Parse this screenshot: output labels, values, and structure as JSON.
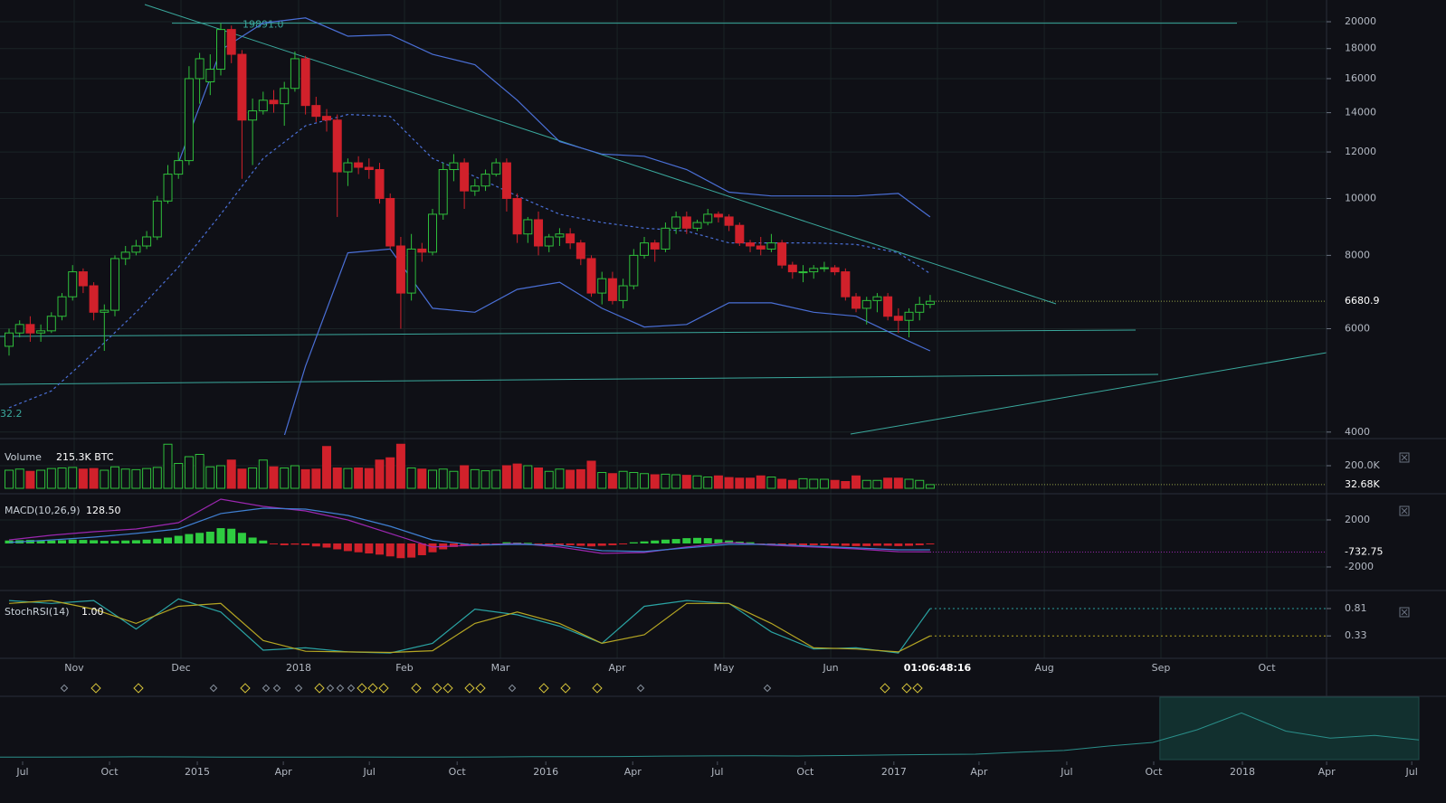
{
  "chart_data": [
    {
      "type": "candlestick",
      "log_scale": true,
      "grid": true,
      "xlim": [
        -0.855,
        124.44
      ],
      "ylim": [
        3955,
        21780
      ],
      "yticks": [
        4000,
        6000,
        8000,
        10000,
        12000,
        14000,
        16000,
        18000,
        20000
      ],
      "xticks": [
        {
          "value": 6.15,
          "label": "Nov"
        },
        {
          "value": 16.24,
          "label": "Dec"
        },
        {
          "value": 27.35,
          "label": "2018"
        },
        {
          "value": 37.35,
          "label": "Feb"
        },
        {
          "value": 46.41,
          "label": "Mar"
        },
        {
          "value": 57.44,
          "label": "Apr"
        },
        {
          "value": 67.52,
          "label": "May"
        },
        {
          "value": 77.61,
          "label": "Jun"
        },
        {
          "value": 87.69,
          "label": "01:06:48:16"
        },
        {
          "value": 97.78,
          "label": "Aug"
        },
        {
          "value": 108.8,
          "label": "Sep"
        },
        {
          "value": 118.8,
          "label": "Oct"
        }
      ],
      "up_color": "#2fbf3b",
      "down_color": "#d1212b",
      "candles": {
        "open": [
          5600,
          5900,
          6100,
          5900,
          5950,
          6300,
          6800,
          7500,
          7100,
          6400,
          6450,
          7900,
          8100,
          8300,
          8600,
          9900,
          11000,
          11600,
          16000,
          15800,
          16600,
          19400,
          17600,
          13600,
          14100,
          14700,
          14500,
          15400,
          17300,
          14400,
          13800,
          13600,
          11100,
          11500,
          11300,
          11200,
          10000,
          8300,
          6900,
          8200,
          8100,
          9400,
          11200,
          11500,
          10300,
          10500,
          11000,
          11500,
          10000,
          8700,
          9200,
          8300,
          8600,
          8700,
          8400,
          7900,
          6900,
          7300,
          6700,
          7100,
          8000,
          8400,
          8200,
          8900,
          9300,
          8900,
          9100,
          9400,
          9300,
          9000,
          8400,
          8300,
          8200,
          8400,
          7700,
          7500,
          7500,
          7600,
          7620,
          7500,
          6800,
          6500,
          6700,
          6800,
          6300,
          6200,
          6400,
          6600
        ],
        "high": [
          6000,
          6200,
          6300,
          6100,
          6400,
          6900,
          7700,
          7600,
          7200,
          6600,
          8000,
          8300,
          8500,
          8800,
          10100,
          11400,
          12000,
          16800,
          17700,
          17600,
          19891,
          19700,
          17900,
          14800,
          15200,
          15300,
          15800,
          17800,
          17500,
          14900,
          14200,
          13900,
          11700,
          11800,
          11700,
          11500,
          10200,
          8600,
          8700,
          8400,
          9600,
          11500,
          11900,
          11700,
          10800,
          11200,
          11700,
          11700,
          10200,
          9300,
          9500,
          8700,
          8900,
          8900,
          8500,
          8000,
          7500,
          7500,
          7300,
          8200,
          8600,
          8500,
          9100,
          9500,
          9500,
          9200,
          9600,
          9500,
          9400,
          9100,
          8500,
          8600,
          8700,
          8500,
          7800,
          7700,
          7700,
          7800,
          7700,
          7600,
          6900,
          6800,
          6900,
          6900,
          6500,
          6500,
          6800,
          6850
        ],
        "low": [
          5400,
          5800,
          5700,
          5700,
          5900,
          6200,
          6700,
          6900,
          6200,
          5500,
          6300,
          7700,
          8000,
          8200,
          8500,
          9800,
          10800,
          11400,
          14500,
          15000,
          16200,
          17000,
          10800,
          11400,
          13900,
          14000,
          13300,
          15200,
          13900,
          13500,
          13000,
          9300,
          10500,
          11000,
          10800,
          9800,
          8200,
          6000,
          6700,
          7800,
          8000,
          9200,
          10700,
          9600,
          10100,
          10300,
          10900,
          9500,
          8400,
          8400,
          8000,
          8100,
          8300,
          8200,
          7700,
          6800,
          6600,
          6600,
          6500,
          7000,
          7900,
          7800,
          8100,
          8700,
          8700,
          8800,
          9000,
          9100,
          8800,
          8300,
          8100,
          8000,
          8100,
          7600,
          7300,
          7200,
          7300,
          7500,
          7400,
          6700,
          6400,
          6100,
          6400,
          6200,
          5900,
          5800,
          6200,
          6500
        ],
        "close": [
          5900,
          6100,
          5900,
          5950,
          6300,
          6800,
          7500,
          7100,
          6400,
          6450,
          7900,
          8100,
          8300,
          8600,
          9900,
          11000,
          11600,
          16000,
          17300,
          16600,
          19400,
          17600,
          13600,
          14100,
          14700,
          14500,
          15400,
          17300,
          14400,
          13800,
          13600,
          11100,
          11500,
          11300,
          11200,
          10000,
          8300,
          6900,
          8200,
          8100,
          9400,
          11200,
          11500,
          10300,
          10500,
          11000,
          11500,
          10000,
          8700,
          9200,
          8300,
          8600,
          8700,
          8400,
          7900,
          6900,
          7300,
          6700,
          7100,
          8000,
          8400,
          8200,
          8900,
          9300,
          8900,
          9100,
          9400,
          9300,
          9000,
          8400,
          8300,
          8200,
          8400,
          7700,
          7500,
          7500,
          7600,
          7620,
          7500,
          6800,
          6500,
          6700,
          6800,
          6300,
          6200,
          6400,
          6600,
          6680.9
        ]
      },
      "overlays": [
        {
          "color": "#4a6fd6",
          "x": [
            0,
            4,
            8,
            12,
            16,
            20,
            24,
            28,
            32,
            36,
            40,
            44,
            48,
            52,
            56,
            60,
            64,
            68,
            72,
            76,
            80,
            84,
            87
          ],
          "values": [
            null,
            null,
            null,
            null,
            11500,
            17900,
            19900,
            20300,
            18900,
            19000,
            17600,
            16900,
            14700,
            12500,
            11900,
            11800,
            11200,
            10250,
            10100,
            10100,
            10100,
            10200,
            9300
          ]
        },
        {
          "color": "#4a6fd6",
          "style": "dashed",
          "x": [
            0,
            4,
            8,
            12,
            16,
            20,
            24,
            28,
            32,
            36,
            40,
            44,
            48,
            52,
            56,
            60,
            64,
            68,
            72,
            76,
            80,
            84,
            87
          ],
          "values": [
            4400,
            4700,
            5460,
            6400,
            7640,
            9400,
            11700,
            13300,
            13900,
            13800,
            11700,
            10900,
            10100,
            9400,
            9100,
            8900,
            8800,
            8400,
            8400,
            8400,
            8350,
            8080,
            7450
          ]
        },
        {
          "color": "#4a6fd6",
          "x": [
            0,
            4,
            8,
            12,
            16,
            20,
            24,
            28,
            32,
            36,
            40,
            44,
            48,
            52,
            56,
            60,
            64,
            68,
            72,
            76,
            80,
            84,
            87
          ],
          "values": [
            null,
            null,
            null,
            null,
            null,
            null,
            3000,
            5180,
            8080,
            8200,
            6500,
            6400,
            7000,
            7200,
            6500,
            6040,
            6100,
            6640,
            6640,
            6400,
            6300,
            5820,
            5500
          ]
        }
      ],
      "annotation": {
        "value": 19891,
        "label": "19891.0"
      },
      "corner_label": "32.2",
      "last_price": 6680.9
    },
    {
      "type": "bar",
      "title": "Volume",
      "value_text": "215.3K BTC",
      "ylim": [
        0,
        400
      ],
      "yticks": [
        {
          "value": 200,
          "label": "200.0K"
        }
      ],
      "last": {
        "value": 32.68,
        "label": "32.68K"
      },
      "values": [
        160,
        170,
        150,
        160,
        175,
        180,
        185,
        170,
        175,
        160,
        190,
        170,
        165,
        175,
        185,
        390,
        220,
        280,
        300,
        190,
        200,
        250,
        170,
        180,
        250,
        190,
        180,
        200,
        165,
        170,
        370,
        180,
        175,
        180,
        175,
        250,
        270,
        390,
        180,
        170,
        160,
        170,
        150,
        200,
        165,
        155,
        160,
        200,
        215,
        200,
        180,
        150,
        170,
        160,
        165,
        240,
        140,
        130,
        150,
        140,
        130,
        120,
        125,
        120,
        115,
        110,
        100,
        110,
        95,
        90,
        90,
        110,
        100,
        80,
        70,
        85,
        80,
        80,
        70,
        60,
        110,
        70,
        70,
        90,
        90,
        80,
        70,
        32.68
      ]
    },
    {
      "type": "macd",
      "title": "MACD(10,26,9)",
      "value_text": "128.50",
      "ylim": [
        -3770,
        3920
      ],
      "yticks": [
        2000,
        -2000
      ],
      "last": -732.75,
      "up_color": "#2ecc40",
      "down_color": "#d1212b",
      "histogram": [
        250,
        275,
        300,
        275,
        250,
        275,
        325,
        300,
        275,
        225,
        225,
        250,
        275,
        325,
        400,
        500,
        650,
        800,
        900,
        1000,
        1300,
        1250,
        900,
        500,
        250,
        -75,
        -150,
        -100,
        -150,
        -250,
        -350,
        -500,
        -650,
        -750,
        -850,
        -950,
        -1100,
        -1250,
        -1200,
        -1000,
        -750,
        -500,
        -300,
        -200,
        -150,
        -100,
        -75,
        100,
        75,
        50,
        -50,
        -100,
        -125,
        -150,
        -200,
        -250,
        -200,
        -150,
        -75,
        100,
        175,
        250,
        325,
        375,
        450,
        475,
        450,
        350,
        250,
        150,
        100,
        -50,
        -100,
        -150,
        -175,
        -175,
        -150,
        -150,
        -175,
        -200,
        -225,
        -225,
        -200,
        -200,
        -225,
        -200,
        -150,
        -50
      ],
      "series": [
        {
          "color": "#9c27b0",
          "x": [
            0,
            4,
            8,
            12,
            16,
            20,
            24,
            28,
            32,
            36,
            40,
            44,
            48,
            52,
            56,
            60,
            64,
            68,
            72,
            76,
            80,
            84,
            87
          ],
          "values": [
            300,
            700,
            1000,
            1230,
            1770,
            3770,
            3150,
            2770,
            2000,
            850,
            -300,
            -150,
            0,
            -300,
            -850,
            -770,
            -300,
            80,
            -150,
            -300,
            -460,
            -700,
            -720
          ]
        },
        {
          "color": "#3f7fd1",
          "x": [
            0,
            4,
            8,
            12,
            16,
            20,
            24,
            28,
            32,
            36,
            40,
            44,
            48,
            52,
            56,
            60,
            64,
            68,
            72,
            76,
            80,
            84,
            87
          ],
          "values": [
            80,
            300,
            540,
            850,
            1230,
            2540,
            3000,
            2920,
            2380,
            1460,
            300,
            -150,
            -80,
            -150,
            -620,
            -690,
            -380,
            -80,
            -80,
            -230,
            -380,
            -540,
            -540
          ]
        }
      ]
    },
    {
      "type": "line",
      "title": "StochRSI(14)",
      "value_text": "1.00",
      "ylim": [
        0,
        1
      ],
      "yticks": [
        0.81,
        0.33
      ],
      "series": [
        {
          "color": "#2aa3a3",
          "x": [
            0,
            4,
            8,
            12,
            16,
            20,
            24,
            28,
            32,
            36,
            40,
            44,
            48,
            52,
            56,
            60,
            64,
            68,
            72,
            76,
            80,
            84,
            87
          ],
          "values": [
            0.95,
            0.9,
            0.95,
            0.45,
            0.98,
            0.75,
            0.08,
            0.12,
            0.05,
            0.03,
            0.2,
            0.8,
            0.7,
            0.5,
            0.2,
            0.85,
            0.95,
            0.9,
            0.4,
            0.1,
            0.12,
            0.03,
            0.81
          ]
        },
        {
          "color": "#b5a623",
          "x": [
            0,
            4,
            8,
            12,
            16,
            20,
            24,
            28,
            32,
            36,
            40,
            44,
            48,
            52,
            56,
            60,
            64,
            68,
            72,
            76,
            80,
            84,
            87
          ],
          "values": [
            0.9,
            0.95,
            0.8,
            0.55,
            0.85,
            0.9,
            0.25,
            0.06,
            0.05,
            0.04,
            0.07,
            0.55,
            0.75,
            0.55,
            0.2,
            0.35,
            0.9,
            0.9,
            0.55,
            0.12,
            0.1,
            0.05,
            0.33
          ]
        }
      ]
    },
    {
      "type": "navigator",
      "color": "#2a8f8a",
      "xlim": [
        0,
        32
      ],
      "ylim": [
        0,
        20000
      ],
      "selection": [
        26.16,
        32
      ],
      "values": [
        250,
        260,
        300,
        370,
        320,
        250,
        240,
        230,
        280,
        240,
        240,
        300,
        420,
        420,
        450,
        620,
        670,
        720,
        650,
        800,
        1000,
        1150,
        1300,
        2000,
        2600,
        4200,
        5500,
        10000,
        16000,
        9500,
        7000,
        8000,
        6400
      ],
      "xticks": [
        {
          "value": 0.51,
          "label": "Jul"
        },
        {
          "value": 2.47,
          "label": "Oct"
        },
        {
          "value": 4.45,
          "label": "2015"
        },
        {
          "value": 6.39,
          "label": "Apr"
        },
        {
          "value": 8.33,
          "label": "Jul"
        },
        {
          "value": 10.31,
          "label": "Oct"
        },
        {
          "value": 12.31,
          "label": "2016"
        },
        {
          "value": 14.27,
          "label": "Apr"
        },
        {
          "value": 16.18,
          "label": "Jul"
        },
        {
          "value": 18.16,
          "label": "Oct"
        },
        {
          "value": 20.16,
          "label": "2017"
        },
        {
          "value": 22.08,
          "label": "Apr"
        },
        {
          "value": 24.06,
          "label": "Jul"
        },
        {
          "value": 26.02,
          "label": "Oct"
        },
        {
          "value": 28.02,
          "label": "2018"
        },
        {
          "value": 29.92,
          "label": "Apr"
        },
        {
          "value": 31.84,
          "label": "Jul"
        }
      ]
    }
  ]
}
